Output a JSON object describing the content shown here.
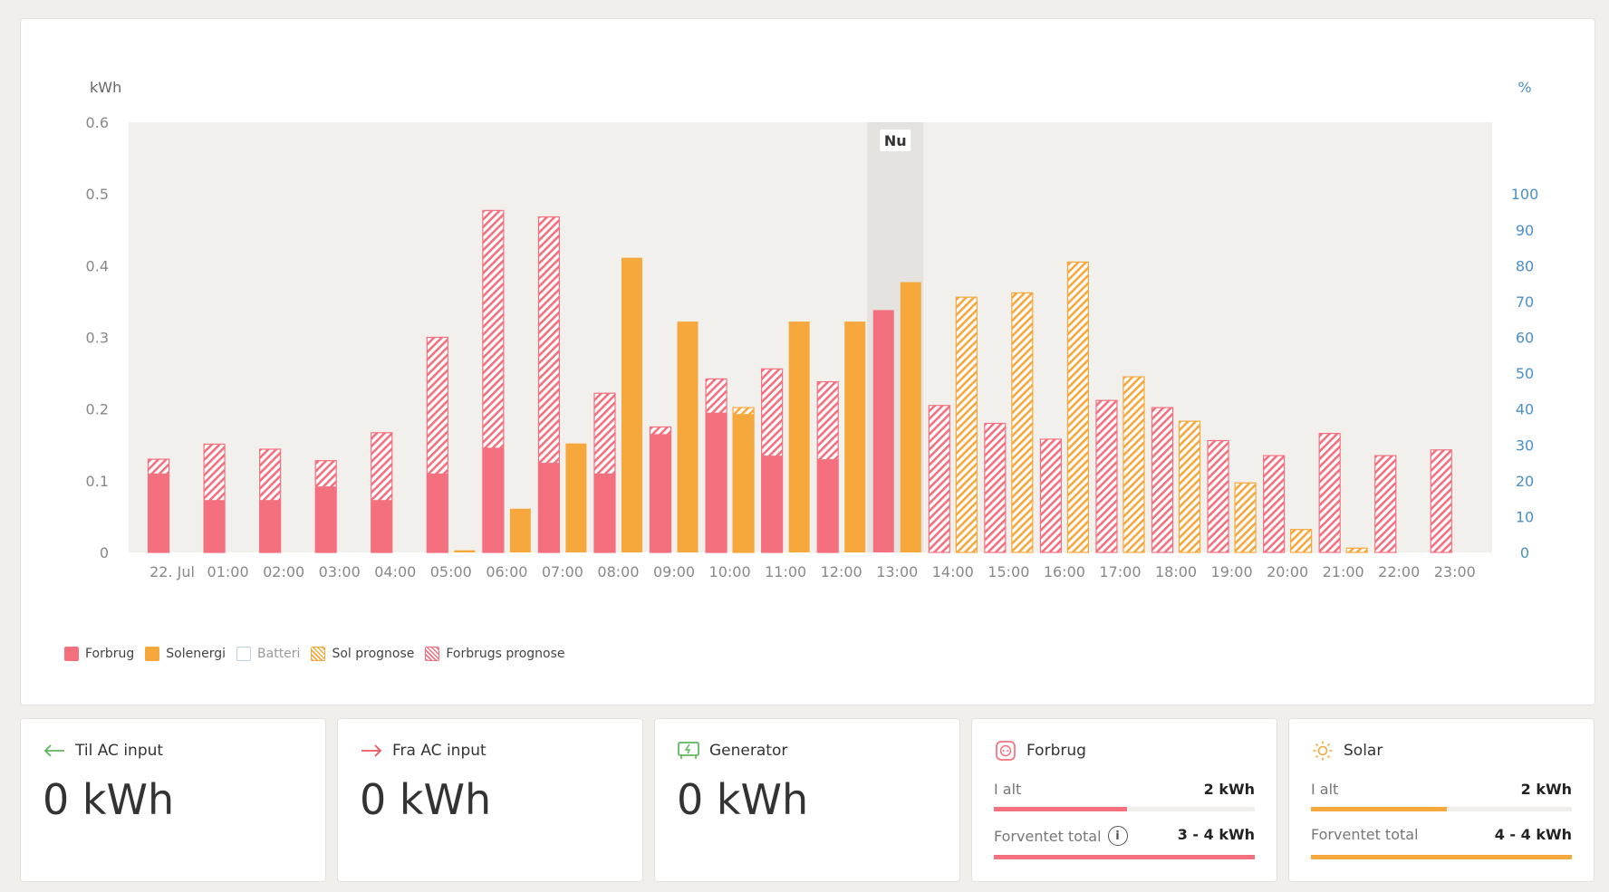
{
  "chart_data": {
    "type": "bar",
    "y_left_label": "kWh",
    "y_right_label": "%",
    "ylim": [
      0,
      0.6
    ],
    "y_ticks": [
      "0",
      "0.1",
      "0.2",
      "0.3",
      "0.4",
      "0.5",
      "0.6"
    ],
    "y_right_lim": [
      0,
      120
    ],
    "y_right_ticks": [
      "0",
      "10",
      "20",
      "30",
      "40",
      "50",
      "60",
      "70",
      "80",
      "90",
      "100"
    ],
    "x_tick_labels": [
      "22. Jul",
      "01:00",
      "02:00",
      "03:00",
      "04:00",
      "05:00",
      "06:00",
      "07:00",
      "08:00",
      "09:00",
      "10:00",
      "11:00",
      "12:00",
      "13:00",
      "14:00",
      "15:00",
      "16:00",
      "17:00",
      "18:00",
      "19:00",
      "20:00",
      "21:00",
      "22:00",
      "23:00"
    ],
    "now_label": "Nu",
    "now_index": 13,
    "grid": false,
    "legend_position": "bottom-left",
    "series": [
      {
        "name": "Forbrug",
        "color": "#f5707f",
        "values": [
          0.11,
          0.073,
          0.073,
          0.092,
          0.073,
          0.11,
          0.146,
          0.125,
          0.11,
          0.165,
          0.195,
          0.135,
          0.13,
          0.338,
          null,
          null,
          null,
          null,
          null,
          null,
          null,
          null,
          null,
          null
        ]
      },
      {
        "name": "Forbrugs prognose",
        "color": "#f5707f",
        "values": [
          0.13,
          0.151,
          0.144,
          0.128,
          0.167,
          0.3,
          0.477,
          0.468,
          0.222,
          0.175,
          0.242,
          0.256,
          0.238,
          null,
          0.205,
          0.18,
          0.158,
          0.212,
          0.202,
          0.156,
          0.135,
          0.166,
          0.135,
          0.143
        ]
      },
      {
        "name": "Solenergi",
        "color": "#f7a83c",
        "values": [
          null,
          null,
          null,
          null,
          null,
          0.003,
          0.061,
          0.152,
          0.411,
          0.322,
          0.193,
          0.322,
          0.322,
          0.377,
          null,
          null,
          null,
          null,
          null,
          null,
          null,
          null,
          null,
          null
        ]
      },
      {
        "name": "Sol prognose",
        "color": "#f7a83c",
        "values": [
          null,
          null,
          null,
          null,
          null,
          null,
          null,
          null,
          null,
          null,
          0.202,
          null,
          null,
          null,
          0.356,
          0.362,
          0.405,
          0.245,
          0.183,
          0.097,
          0.032,
          0.006,
          null,
          null
        ]
      }
    ]
  },
  "legend": [
    {
      "label": "Forbrug",
      "swatch": "sw-cons",
      "muted": false
    },
    {
      "label": "Solenergi",
      "swatch": "sw-solar",
      "muted": false
    },
    {
      "label": "Batteri",
      "swatch": "sw-batt",
      "muted": true
    },
    {
      "label": "Sol prognose",
      "swatch": "sw-solfc",
      "muted": false
    },
    {
      "label": "Forbrugs prognose",
      "swatch": "sw-consfc",
      "muted": false
    }
  ],
  "cards": {
    "to_ac": {
      "title": "Til AC input",
      "value": "0 kWh",
      "icon": "arrow-left-icon",
      "icon_color": "#5cb85c"
    },
    "from_ac": {
      "title": "Fra AC input",
      "value": "0 kWh",
      "icon": "arrow-right-icon",
      "icon_color": "#f0545f"
    },
    "generator": {
      "title": "Generator",
      "value": "0 kWh",
      "icon": "generator-icon",
      "icon_color": "#5cb85c"
    },
    "consumption": {
      "title": "Forbrug",
      "icon": "socket-icon",
      "color": "#f5707f",
      "total_label": "I alt",
      "total_value": "2 kWh",
      "total_fill": 0.51,
      "expected_label": "Forventet total",
      "expected_value": "3 - 4 kWh",
      "expected_fill": 1.0
    },
    "solar": {
      "title": "Solar",
      "icon": "sun-icon",
      "color": "#f7a83c",
      "total_label": "I alt",
      "total_value": "2 kWh",
      "total_fill": 0.52,
      "expected_label": "Forventet total",
      "expected_value": "4 - 4 kWh",
      "expected_fill": 1.0
    }
  }
}
